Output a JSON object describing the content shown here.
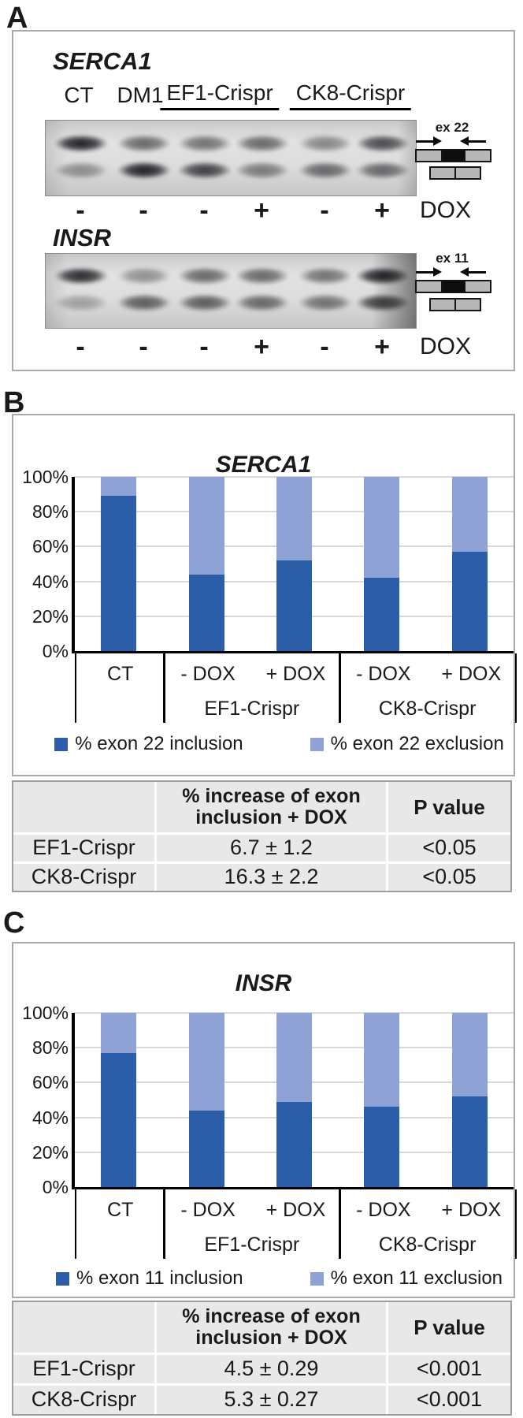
{
  "colors": {
    "inclusion": "#2B5DA9",
    "exclusion": "#8EA2D6"
  },
  "panelA": {
    "label": "A",
    "serca1_title": "SERCA1",
    "insr_title": "INSR",
    "lane_headers": [
      "CT",
      "DM1",
      "EF1-Crispr",
      "CK8-Crispr"
    ],
    "dox_symbols": [
      "-",
      "-",
      "-",
      "+",
      "-",
      "+"
    ],
    "dox_label": "DOX",
    "exon22_label": "ex 22",
    "exon11_label": "ex 11",
    "gel_serca1": {
      "lanes": [
        [
          0.95,
          0.4
        ],
        [
          0.6,
          0.95
        ],
        [
          0.55,
          0.8
        ],
        [
          0.6,
          0.5
        ],
        [
          0.45,
          0.6
        ],
        [
          0.75,
          0.6
        ]
      ]
    },
    "gel_insr": {
      "lanes": [
        [
          0.9,
          0.3
        ],
        [
          0.4,
          0.65
        ],
        [
          0.6,
          0.65
        ],
        [
          0.6,
          0.6
        ],
        [
          0.55,
          0.55
        ],
        [
          0.95,
          0.8
        ]
      ]
    }
  },
  "panelB": {
    "label": "B",
    "table": {
      "header": [
        "",
        "% increase of exon inclusion + DOX",
        "P value"
      ],
      "rows": [
        [
          "EF1-Crispr",
          "6.7 ±  1.2",
          "<0.05"
        ],
        [
          "CK8-Crispr",
          "16.3 ± 2.2",
          "<0.05"
        ]
      ]
    }
  },
  "panelC": {
    "label": "C",
    "table": {
      "header": [
        "",
        "% increase of exon inclusion + DOX",
        "P value"
      ],
      "rows": [
        [
          "EF1-Crispr",
          "4.5 ± 0.29",
          "<0.001"
        ],
        [
          "CK8-Crispr",
          "5.3 ± 0.27",
          "<0.001"
        ]
      ]
    }
  },
  "chart_data": [
    {
      "type": "bar",
      "stacked": true,
      "title": "SERCA1",
      "categories": [
        "CT",
        "EF1-Crispr - DOX",
        "EF1-Crispr + DOX",
        "CK8-Crispr - DOX",
        "CK8-Crispr + DOX"
      ],
      "axis": {
        "cats": [
          "CT",
          "- DOX",
          "+ DOX",
          "- DOX",
          "+ DOX"
        ],
        "groups": [
          "EF1-Crispr",
          "CK8-Crispr"
        ]
      },
      "series": [
        {
          "name": "% exon 22 inclusion",
          "color": "#2B5DA9",
          "values": [
            89,
            44,
            52,
            42,
            57
          ]
        },
        {
          "name": "% exon 22 exclusion",
          "color": "#8EA2D6",
          "values": [
            11,
            56,
            48,
            58,
            43
          ]
        }
      ],
      "ylim": [
        0,
        100
      ],
      "yticks": [
        "0%",
        "20%",
        "40%",
        "60%",
        "80%",
        "100%"
      ],
      "grid": true,
      "legend_position": "bottom"
    },
    {
      "type": "bar",
      "stacked": true,
      "title": "INSR",
      "categories": [
        "CT",
        "EF1-Crispr - DOX",
        "EF1-Crispr + DOX",
        "CK8-Crispr - DOX",
        "CK8-Crispr + DOX"
      ],
      "axis": {
        "cats": [
          "CT",
          "- DOX",
          "+ DOX",
          "- DOX",
          "+ DOX"
        ],
        "groups": [
          "EF1-Crispr",
          "CK8-Crispr"
        ]
      },
      "series": [
        {
          "name": "% exon 11 inclusion",
          "color": "#2B5DA9",
          "values": [
            77,
            44,
            49,
            46,
            52
          ]
        },
        {
          "name": "% exon 11 exclusion",
          "color": "#8EA2D6",
          "values": [
            23,
            56,
            51,
            54,
            48
          ]
        }
      ],
      "ylim": [
        0,
        100
      ],
      "yticks": [
        "0%",
        "20%",
        "40%",
        "60%",
        "80%",
        "100%"
      ],
      "grid": true,
      "legend_position": "bottom"
    }
  ]
}
